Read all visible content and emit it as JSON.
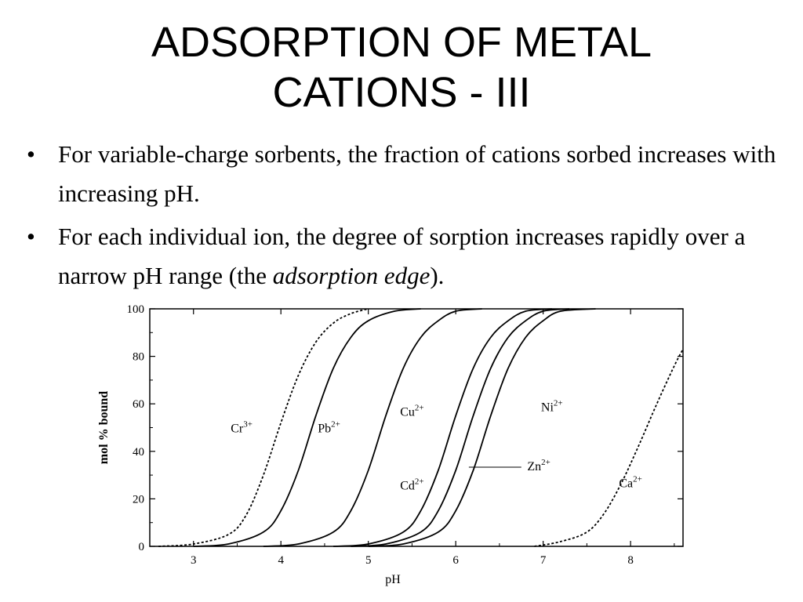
{
  "slide": {
    "title_line1": "ADSORPTION OF METAL",
    "title_line2": "CATIONS - III",
    "bullets": [
      {
        "text": "For variable-charge sorbents, the fraction of cations sorbed increases with increasing pH."
      },
      {
        "text_before": "For each individual ion, the degree of sorption increases rapidly over a narrow pH range (the ",
        "emphasis": "adsorption edge",
        "text_after": ")."
      }
    ],
    "bullet_symbol": "•"
  },
  "chart_data": {
    "type": "line",
    "xlabel": "pH",
    "ylabel": "mol % bound",
    "xlim": [
      2.5,
      8.6
    ],
    "ylim": [
      0,
      100
    ],
    "x_ticks": [
      "3",
      "4",
      "5",
      "6",
      "7",
      "8"
    ],
    "y_ticks": [
      "0",
      "20",
      "40",
      "60",
      "80",
      "100"
    ],
    "grid": false,
    "series": [
      {
        "name": "Cr3+",
        "ion": "Cr",
        "charge": "3+",
        "style": "dashed",
        "x": [
          2.6,
          3.0,
          3.4,
          3.6,
          3.8,
          4.0,
          4.2,
          4.4,
          4.6,
          4.8,
          5.0
        ],
        "y": [
          0,
          1,
          5,
          13,
          30,
          52,
          72,
          86,
          94,
          98,
          100
        ]
      },
      {
        "name": "Pb2+",
        "ion": "Pb",
        "charge": "2+",
        "style": "solid",
        "x": [
          3.0,
          3.4,
          3.8,
          4.0,
          4.2,
          4.4,
          4.6,
          4.8,
          5.0,
          5.3,
          5.6
        ],
        "y": [
          0,
          1,
          6,
          15,
          32,
          55,
          75,
          88,
          95,
          99,
          100
        ]
      },
      {
        "name": "Cu2+",
        "ion": "Cu",
        "charge": "2+",
        "style": "solid",
        "x": [
          3.8,
          4.2,
          4.6,
          4.8,
          5.0,
          5.2,
          5.4,
          5.6,
          5.8,
          6.0,
          6.3
        ],
        "y": [
          0,
          1,
          6,
          15,
          32,
          55,
          75,
          88,
          95,
          99,
          100
        ]
      },
      {
        "name": "Cd2+",
        "ion": "Cd",
        "charge": "2+",
        "style": "solid",
        "x": [
          4.6,
          5.0,
          5.4,
          5.6,
          5.8,
          6.0,
          6.2,
          6.4,
          6.6,
          6.8,
          7.1
        ],
        "y": [
          0,
          1,
          6,
          15,
          32,
          55,
          75,
          88,
          95,
          99,
          100
        ]
      },
      {
        "name": "Zn2+",
        "ion": "Zn",
        "charge": "2+",
        "style": "solid",
        "x": [
          4.8,
          5.2,
          5.6,
          5.8,
          6.0,
          6.2,
          6.4,
          6.6,
          6.8,
          7.0,
          7.3
        ],
        "y": [
          0,
          1,
          6,
          15,
          32,
          55,
          75,
          88,
          95,
          99,
          100
        ]
      },
      {
        "name": "Ni2+",
        "ion": "Ni",
        "charge": "2+",
        "style": "solid",
        "x": [
          5.0,
          5.4,
          5.8,
          6.0,
          6.2,
          6.4,
          6.6,
          6.8,
          7.0,
          7.2,
          7.6
        ],
        "y": [
          0,
          1,
          6,
          15,
          32,
          55,
          75,
          88,
          95,
          99,
          100
        ]
      },
      {
        "name": "Ca2+",
        "ion": "Ca",
        "charge": "2+",
        "style": "dashed",
        "x": [
          6.9,
          7.2,
          7.5,
          7.7,
          7.9,
          8.1,
          8.3,
          8.5,
          8.6
        ],
        "y": [
          0,
          2,
          6,
          14,
          27,
          43,
          60,
          76,
          83
        ]
      }
    ]
  }
}
